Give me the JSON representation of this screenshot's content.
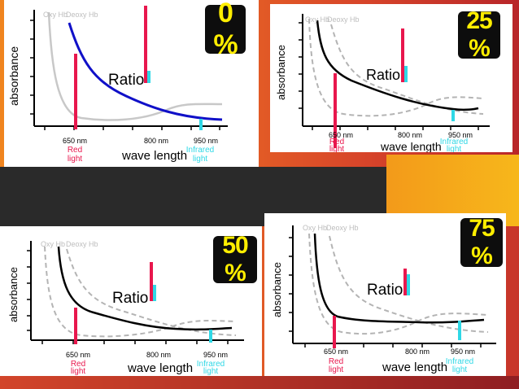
{
  "colors": {
    "red": "#e8174d",
    "cyan": "#2fd8e6",
    "blue": "#1010c8",
    "black": "#000000",
    "oxy_grey": "#c8c8c8",
    "dash_grey": "#b4b4b4",
    "badge_bg": "#0d0d0d",
    "badge_text": "#ffee00"
  },
  "panels": [
    {
      "percent": "0 %",
      "ylabel": "absorbance",
      "xlabel": "wave length",
      "ratio_label": "Ratio",
      "legend_oxy": "Oxy Hb",
      "legend_deoxy": "Deoxy Hb",
      "tick_650": "650 nm",
      "tick_800": "800 nm",
      "tick_950": "950 nm",
      "red_label_1": "Red",
      "red_label_2": "light",
      "ir_label_1": "Infrared",
      "ir_label_2": "light"
    },
    {
      "percent": "25 %",
      "ylabel": "absorbance",
      "xlabel": "wave length",
      "ratio_label": "Ratio",
      "legend_oxy": "Oxy Hb",
      "legend_deoxy": "Deoxy Hb",
      "tick_650": "650 nm",
      "tick_800": "800 nm",
      "tick_950": "950 nm",
      "red_label_1": "Red",
      "red_label_2": "light",
      "ir_label_1": "Infrared",
      "ir_label_2": "light"
    },
    {
      "percent": "50 %",
      "ylabel": "absorbance",
      "xlabel": "wave length",
      "ratio_label": "Ratio",
      "legend_oxy": "Oxy Hb",
      "legend_deoxy": "Deoxy Hb",
      "tick_650": "650 nm",
      "tick_800": "800 nm",
      "tick_950": "950 nm",
      "red_label_1": "Red",
      "red_label_2": "light",
      "ir_label_1": "Infrared",
      "ir_label_2": "light"
    },
    {
      "percent": "75 %",
      "ylabel": "absorbance",
      "xlabel": "wave length",
      "ratio_label": "Ratio",
      "legend_oxy": "Oxy Hb",
      "legend_deoxy": "Deoxy Hb",
      "tick_650": "650 nm",
      "tick_800": "800 nm",
      "tick_950": "950 nm",
      "red_label_1": "Red",
      "red_label_2": "light",
      "ir_label_1": "Infrared",
      "ir_label_2": "light"
    }
  ]
}
